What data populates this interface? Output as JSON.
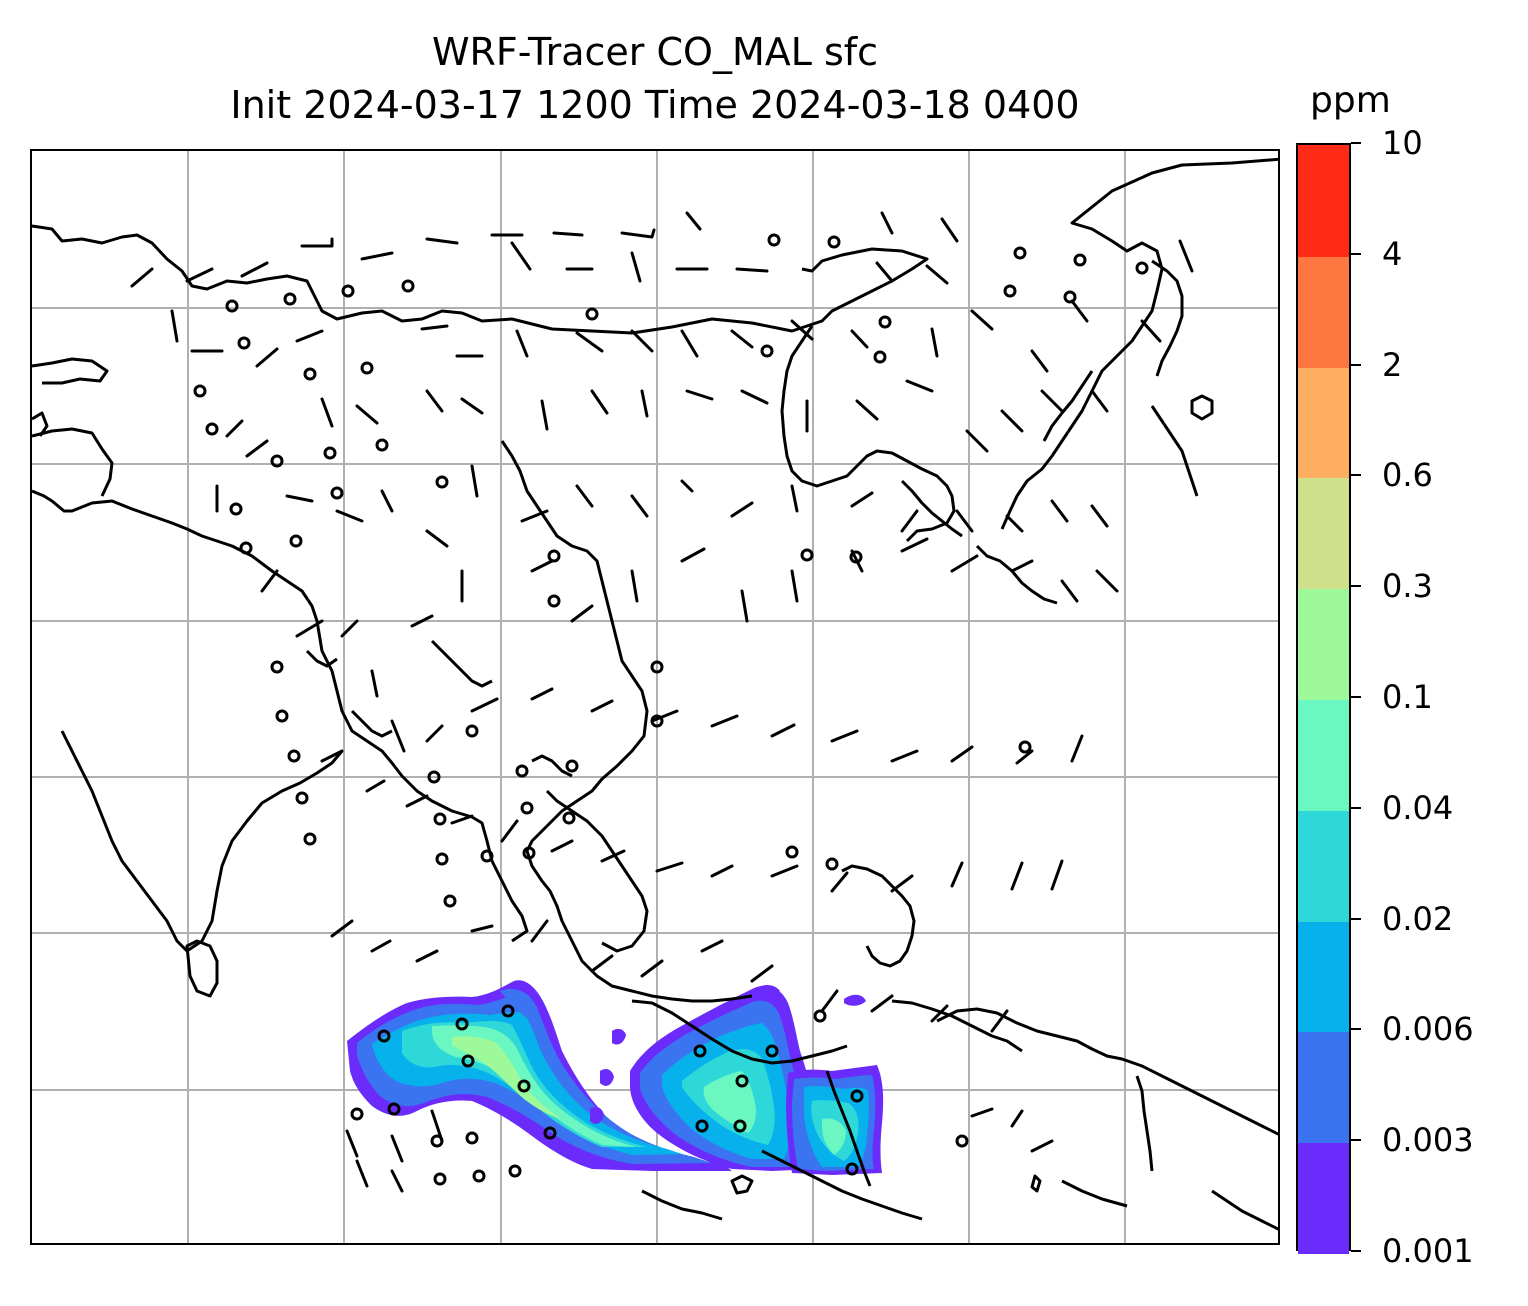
{
  "title": {
    "line1": "WRF-Tracer CO_MAL sfc",
    "line2": "Init 2024-03-17 1200 Time 2024-03-18 0400"
  },
  "map": {
    "projection": "lat-lon",
    "coastline_color": "#000000",
    "gridline_color": "#b0b0b0",
    "wind_barb_color": "#000000",
    "tracer_field": "CO_MAL surface concentration, highest over Sumatra/Malay peninsula and Borneo plume"
  },
  "colorbar": {
    "units": "ppm",
    "levels": [
      "0.001",
      "0.003",
      "0.006",
      "0.02",
      "0.04",
      "0.1",
      "0.3",
      "0.6",
      "2",
      "4",
      "10"
    ],
    "colors": [
      "#6b2cfb",
      "#3b74f0",
      "#07b1ec",
      "#2ed8d8",
      "#6af7c1",
      "#9ef99b",
      "#cfe08a",
      "#fdae61",
      "#ff7740",
      "#ff2b17"
    ]
  }
}
